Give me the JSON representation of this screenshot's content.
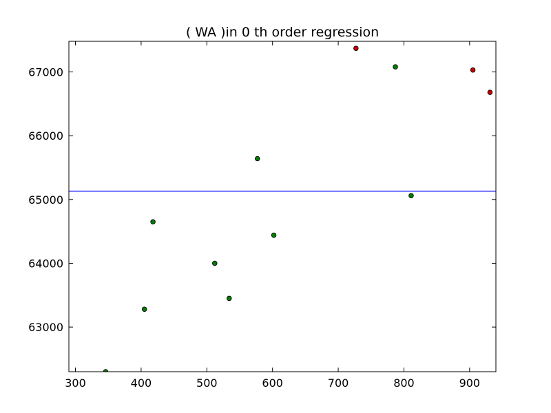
{
  "chart_data": {
    "type": "scatter",
    "title": "(  WA  )in 0 th order regression",
    "xlabel": "",
    "ylabel": "",
    "xlim": [
      290,
      940
    ],
    "ylim": [
      62300,
      67480
    ],
    "x_ticks": [
      300,
      400,
      500,
      600,
      700,
      800,
      900
    ],
    "y_ticks": [
      63000,
      64000,
      65000,
      66000,
      67000
    ],
    "grid": false,
    "regression_line": {
      "y": 65130,
      "color": "#0000ff"
    },
    "series": [
      {
        "color": "#008000",
        "points": [
          {
            "x": 346,
            "y": 62300
          },
          {
            "x": 405,
            "y": 63280
          },
          {
            "x": 418,
            "y": 64650
          },
          {
            "x": 512,
            "y": 64000
          },
          {
            "x": 534,
            "y": 63450
          },
          {
            "x": 577,
            "y": 65640
          },
          {
            "x": 602,
            "y": 64440
          },
          {
            "x": 787,
            "y": 67080
          },
          {
            "x": 811,
            "y": 65060
          }
        ]
      },
      {
        "color": "#cc0000",
        "points": [
          {
            "x": 727,
            "y": 67370
          },
          {
            "x": 905,
            "y": 67030
          },
          {
            "x": 931,
            "y": 66680
          }
        ]
      }
    ]
  }
}
